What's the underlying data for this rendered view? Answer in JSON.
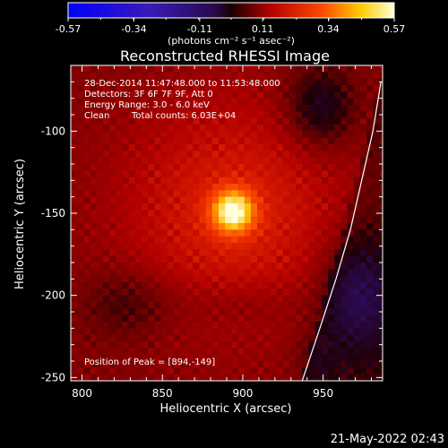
{
  "chart_data": {
    "type": "heatmap",
    "title": "Reconstructed RHESSI Image",
    "xlabel": "Heliocentric X (arcsec)",
    "ylabel": "Heliocentric Y (arcsec)",
    "xlim": [
      793,
      987
    ],
    "ylim": [
      -252,
      -60
    ],
    "xticks": [
      800,
      850,
      900,
      950
    ],
    "yticks": [
      -100,
      -150,
      -200,
      -250
    ],
    "colorbar": {
      "min": -0.57,
      "max": 0.57,
      "ticks": [
        "-0.57",
        "-0.34",
        "-0.11",
        "0.11",
        "0.34",
        "0.57"
      ],
      "unit_label": "(photons cm⁻² s⁻¹ asec⁻²)"
    },
    "annotations": {
      "time_range": "28-Dec-2014 11:47:48.000 to 11:53:48.000",
      "detectors": "Detectors: 3F 6F 7F 9F, Att 0",
      "energy_range": "Energy Range: 3.0 - 6.0 keV",
      "method": "Clean",
      "total_counts": "Total counts: 6.03E+04",
      "peak_position": "Position of Peak = [894,-149]"
    },
    "peak": {
      "x": 894,
      "y": -149,
      "value": 0.57
    },
    "limb_curve": [
      [
        937,
        -252
      ],
      [
        948,
        -220
      ],
      [
        958,
        -190
      ],
      [
        967,
        -160
      ],
      [
        974,
        -130
      ],
      [
        981,
        -100
      ],
      [
        986,
        -70
      ]
    ],
    "colors": {
      "frame": "#ffffff",
      "background": "#000000"
    }
  },
  "footer": {
    "timestamp": "21-May-2022 02:43"
  }
}
